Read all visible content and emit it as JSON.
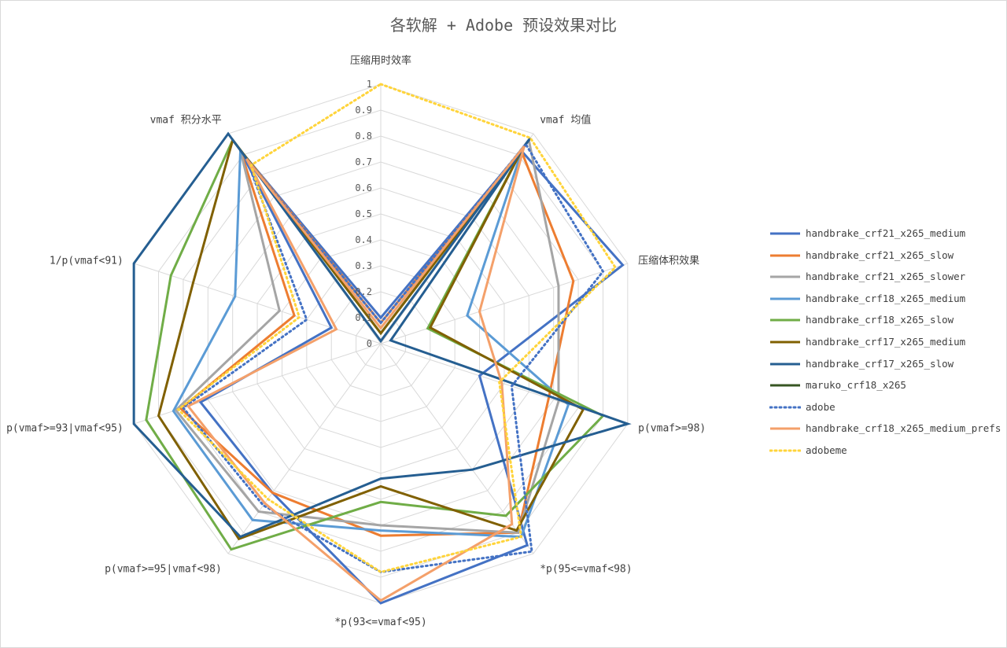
{
  "chart_data": {
    "type": "radar",
    "title": "各软解 + Adobe 预设效果对比",
    "axes": [
      "压缩用时效率",
      "vmaf 均值",
      "压缩体积效果",
      "p(vmaf>=98)",
      "*p(95<=vmaf<98)",
      "*p(93<=vmaf<95)",
      "p(vmaf>=95|vmaf<98)",
      "p(vmaf>=93|vmaf<95)",
      "1/p(vmaf<91)",
      "vmaf 积分水平"
    ],
    "radial_ticks": [
      "0",
      "0.1",
      "0.2",
      "0.3",
      "0.4",
      "0.5",
      "0.6",
      "0.7",
      "0.8",
      "0.9",
      "1"
    ],
    "rlim": [
      0,
      1
    ],
    "grid": true,
    "legend_position": "right",
    "series": [
      {
        "name": "handbrake_crf21_x265_medium",
        "color": "#4472c4",
        "dash": "solid",
        "width": 3,
        "values": [
          0.1,
          0.92,
          0.98,
          0.4,
          0.96,
          1.0,
          0.71,
          0.73,
          0.2,
          0.92
        ]
      },
      {
        "name": "handbrake_crf21_x265_slow",
        "color": "#ed7d31",
        "dash": "solid",
        "width": 3,
        "values": [
          0.08,
          0.92,
          0.78,
          0.68,
          0.9,
          0.74,
          0.71,
          0.81,
          0.35,
          0.92
        ]
      },
      {
        "name": "handbrake_crf21_x265_slower",
        "color": "#a5a5a5",
        "dash": "solid",
        "width": 3,
        "values": [
          0.06,
          0.97,
          0.72,
          0.72,
          0.9,
          0.7,
          0.8,
          0.83,
          0.41,
          0.92
        ]
      },
      {
        "name": "handbrake_crf18_x265_medium",
        "color": "#5b9bd5",
        "dash": "solid",
        "width": 3,
        "values": [
          0.04,
          0.93,
          0.35,
          0.76,
          0.92,
          0.72,
          0.84,
          0.84,
          0.59,
          0.92
        ]
      },
      {
        "name": "handbrake_crf18_x265_slow",
        "color": "#70ad47",
        "dash": "solid",
        "width": 3,
        "values": [
          0.04,
          0.93,
          0.19,
          0.9,
          0.82,
          0.61,
          0.98,
          0.95,
          0.85,
          0.97
        ]
      },
      {
        "name": "handbrake_crf17_x265_medium",
        "color": "#806000",
        "dash": "solid",
        "width": 3,
        "values": [
          0.04,
          0.93,
          0.2,
          0.82,
          0.89,
          0.55,
          0.93,
          0.9,
          0.76,
          0.97
        ]
      },
      {
        "name": "handbrake_crf17_x265_slow",
        "color": "#255e91",
        "dash": "solid",
        "width": 3,
        "values": [
          0.01,
          0.98,
          0.04,
          1.0,
          0.6,
          0.52,
          0.92,
          1.0,
          1.0,
          1.0
        ]
      },
      {
        "name": "maruko_crf18_x265",
        "color": "#375623",
        "dash": "solid",
        "width": 3,
        "values": [
          0.0,
          0.0,
          0.0,
          0.0,
          0.0,
          0.0,
          0.0,
          0.0,
          0.0,
          0.0
        ]
      },
      {
        "name": "adobe",
        "color": "#4472c4",
        "dash": "dotted",
        "width": 3,
        "values": [
          0.08,
          0.95,
          0.9,
          0.53,
          0.99,
          0.88,
          0.77,
          0.8,
          0.3,
          0.88
        ]
      },
      {
        "name": "handbrake_crf18_x265_medium_prefs",
        "color": "#f4a06a",
        "dash": "solid",
        "width": 3,
        "values": [
          0.06,
          0.94,
          0.4,
          0.49,
          0.86,
          0.99,
          0.76,
          0.78,
          0.18,
          0.88
        ]
      },
      {
        "name": "adobeme",
        "color": "#ffd43b",
        "dash": "dotted",
        "width": 3,
        "values": [
          1.0,
          0.98,
          0.95,
          0.48,
          0.92,
          0.88,
          0.74,
          0.82,
          0.33,
          0.85
        ]
      }
    ]
  }
}
